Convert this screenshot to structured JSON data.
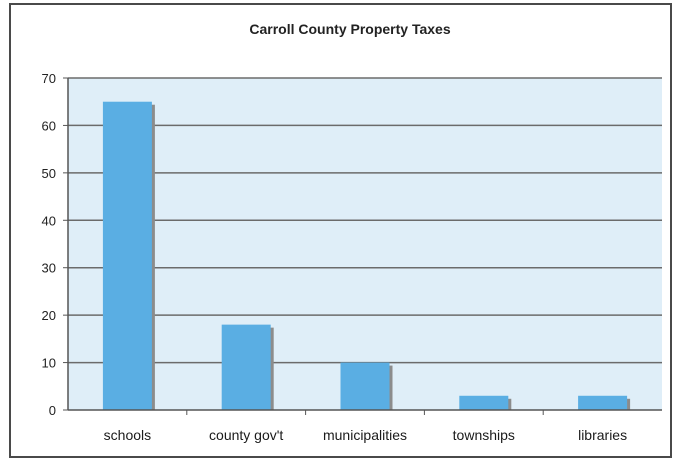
{
  "chart_data": {
    "type": "bar",
    "title": "Carroll County Property Taxes",
    "xlabel": "",
    "ylabel": "",
    "categories": [
      "schools",
      "county gov't",
      "municipalities",
      "townships",
      "libraries"
    ],
    "values": [
      65,
      18,
      10,
      3,
      3
    ],
    "ylim": [
      0,
      70
    ],
    "yticks": [
      0,
      10,
      20,
      30,
      40,
      50,
      60,
      70
    ],
    "grid": true,
    "legend": "none",
    "colors": {
      "bar": "#5aaee3",
      "bar_shadow": "#8c8c8c",
      "plot_background": "#dfeef8",
      "gridline": "#6b6b6b",
      "axis": "#555555",
      "frame": "#4a4a4a"
    }
  }
}
